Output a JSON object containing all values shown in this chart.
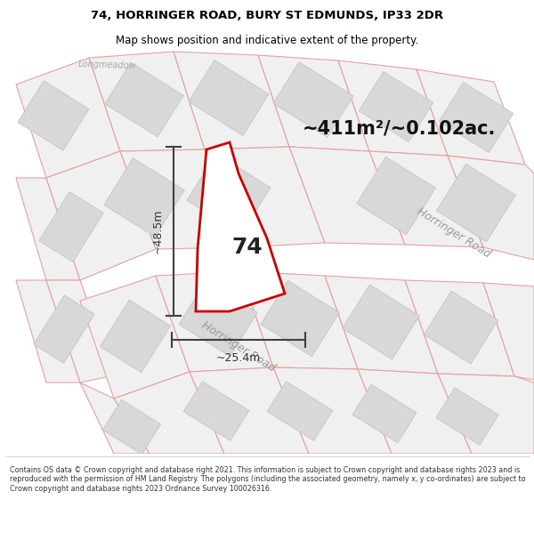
{
  "title_line1": "74, HORRINGER ROAD, BURY ST EDMUNDS, IP33 2DR",
  "title_line2": "Map shows position and indicative extent of the property.",
  "footer_text": "Contains OS data © Crown copyright and database right 2021. This information is subject to Crown copyright and database rights 2023 and is reproduced with the permission of HM Land Registry. The polygons (including the associated geometry, namely x, y co-ordinates) are subject to Crown copyright and database rights 2023 Ordnance Survey 100026316.",
  "area_label": "~411m²/~0.102ac.",
  "label_74": "74",
  "dim_vertical": "~48.5m",
  "dim_horizontal": "~25.4m",
  "road_label_bottom": "Horringer Road",
  "road_label_right": "Horringer Road",
  "street_label_topleft": "Longmeadow",
  "bg_color": "#ffffff",
  "map_bg": "#ffffff",
  "building_fill": "#d8d8d8",
  "parcel_edge": "#e8a0a0",
  "plot_outline_color": "#cc0000",
  "plot_fill": "#ffffff",
  "dim_line_color": "#404040",
  "road_label_color": "#999999",
  "street_label_color": "#aaaaaa",
  "title_color": "#000000",
  "area_label_color": "#111111",
  "dim_label_color": "#333333",
  "title_fontsize": 9.5,
  "subtitle_fontsize": 8.5,
  "area_fontsize": 15,
  "dim_fontsize": 9,
  "road_label_fontsize": 9,
  "street_label_fontsize": 7,
  "label_74_fontsize": 18,
  "footer_fontsize": 5.8
}
